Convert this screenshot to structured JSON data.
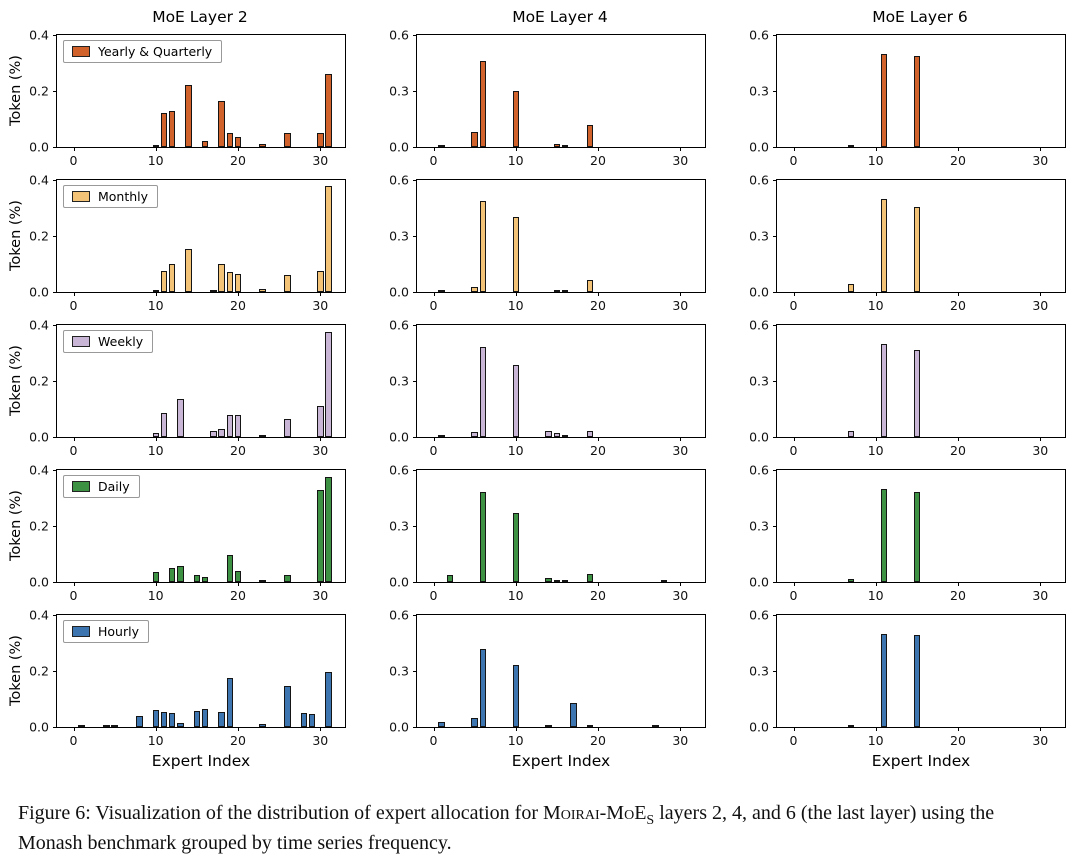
{
  "figure": {
    "caption_prefix": "Figure 6: Visualization of the distribution of expert allocation for ",
    "caption_brand": "Moirai-MoE",
    "caption_brand_sub": "S",
    "caption_suffix": " layers 2, 4, and 6 (the last layer) using the Monash benchmark grouped by time series frequency."
  },
  "chart_data": {
    "type": "bar",
    "layout": "5 rows (frequency groups) x 3 columns (MoE layers), small multiples",
    "columns": [
      "MoE Layer 2",
      "MoE Layer 4",
      "MoE Layer 6"
    ],
    "xlabel": "Expert Index",
    "ylabel": "Token (%)",
    "xticks": [
      0,
      10,
      20,
      30
    ],
    "xrange": [
      -2,
      33
    ],
    "col_ylim": [
      [
        0,
        0.4
      ],
      [
        0,
        0.6
      ],
      [
        0,
        0.6
      ]
    ],
    "col_yticks": [
      [
        0,
        0.2,
        0.4
      ],
      [
        0,
        0.3,
        0.6
      ],
      [
        0,
        0.3,
        0.6
      ]
    ],
    "bar_width": 0.8,
    "grid_lines": false,
    "legend_position": "upper-left of first column plots",
    "rows": [
      {
        "legend": "Yearly & Quarterly",
        "color": "#d2622b",
        "bars": [
          [
            [
              10,
              0.005
            ],
            [
              11,
              0.12
            ],
            [
              12,
              0.13
            ],
            [
              14,
              0.22
            ],
            [
              16,
              0.02
            ],
            [
              18,
              0.165
            ],
            [
              19,
              0.05
            ],
            [
              20,
              0.035
            ],
            [
              23,
              0.01
            ],
            [
              26,
              0.05
            ],
            [
              30,
              0.05
            ],
            [
              31,
              0.26
            ]
          ],
          [
            [
              1,
              0.01
            ],
            [
              5,
              0.08
            ],
            [
              6,
              0.46
            ],
            [
              10,
              0.3
            ],
            [
              15,
              0.015
            ],
            [
              16,
              0.01
            ],
            [
              19,
              0.12
            ]
          ],
          [
            [
              7,
              0.01
            ],
            [
              11,
              0.5
            ],
            [
              15,
              0.49
            ]
          ]
        ]
      },
      {
        "legend": "Monthly",
        "color": "#f3c377",
        "bars": [
          [
            [
              10,
              0.008
            ],
            [
              11,
              0.075
            ],
            [
              12,
              0.1
            ],
            [
              14,
              0.155
            ],
            [
              17,
              0.008
            ],
            [
              18,
              0.1
            ],
            [
              19,
              0.07
            ],
            [
              20,
              0.065
            ],
            [
              23,
              0.012
            ],
            [
              26,
              0.06
            ],
            [
              30,
              0.075
            ],
            [
              31,
              0.38
            ]
          ],
          [
            [
              1,
              0.005
            ],
            [
              5,
              0.025
            ],
            [
              6,
              0.49
            ],
            [
              10,
              0.4
            ],
            [
              15,
              0.01
            ],
            [
              16,
              0.005
            ],
            [
              19,
              0.065
            ]
          ],
          [
            [
              7,
              0.045
            ],
            [
              11,
              0.5
            ],
            [
              15,
              0.455
            ]
          ]
        ]
      },
      {
        "legend": "Weekly",
        "color": "#c9b5d6",
        "bars": [
          [
            [
              10,
              0.015
            ],
            [
              11,
              0.085
            ],
            [
              13,
              0.135
            ],
            [
              17,
              0.02
            ],
            [
              18,
              0.03
            ],
            [
              19,
              0.08
            ],
            [
              20,
              0.08
            ],
            [
              23,
              0.007
            ],
            [
              26,
              0.065
            ],
            [
              30,
              0.11
            ],
            [
              31,
              0.375
            ]
          ],
          [
            [
              1,
              0.005
            ],
            [
              5,
              0.025
            ],
            [
              6,
              0.48
            ],
            [
              10,
              0.385
            ],
            [
              14,
              0.035
            ],
            [
              15,
              0.02
            ],
            [
              16,
              0.012
            ],
            [
              19,
              0.035
            ]
          ],
          [
            [
              7,
              0.03
            ],
            [
              11,
              0.5
            ],
            [
              15,
              0.465
            ]
          ]
        ]
      },
      {
        "legend": "Daily",
        "color": "#3c9142",
        "bars": [
          [
            [
              10,
              0.035
            ],
            [
              12,
              0.05
            ],
            [
              13,
              0.058
            ],
            [
              15,
              0.025
            ],
            [
              16,
              0.018
            ],
            [
              19,
              0.095
            ],
            [
              20,
              0.038
            ],
            [
              23,
              0.006
            ],
            [
              26,
              0.025
            ],
            [
              30,
              0.33
            ],
            [
              31,
              0.375
            ]
          ],
          [
            [
              2,
              0.04
            ],
            [
              6,
              0.48
            ],
            [
              10,
              0.37
            ],
            [
              14,
              0.02
            ],
            [
              15,
              0.01
            ],
            [
              16,
              0.012
            ],
            [
              19,
              0.045
            ],
            [
              28,
              0.006
            ]
          ],
          [
            [
              7,
              0.015
            ],
            [
              11,
              0.5
            ],
            [
              15,
              0.485
            ]
          ]
        ]
      },
      {
        "legend": "Hourly",
        "color": "#3c75b0",
        "bars": [
          [
            [
              1,
              0.005
            ],
            [
              4,
              0.006
            ],
            [
              5,
              0.008
            ],
            [
              8,
              0.038
            ],
            [
              10,
              0.06
            ],
            [
              11,
              0.055
            ],
            [
              12,
              0.05
            ],
            [
              13,
              0.015
            ],
            [
              15,
              0.058
            ],
            [
              16,
              0.065
            ],
            [
              18,
              0.055
            ],
            [
              19,
              0.175
            ],
            [
              23,
              0.012
            ],
            [
              26,
              0.145
            ],
            [
              28,
              0.05
            ],
            [
              29,
              0.045
            ],
            [
              31,
              0.195
            ]
          ],
          [
            [
              1,
              0.025
            ],
            [
              5,
              0.05
            ],
            [
              6,
              0.42
            ],
            [
              10,
              0.335
            ],
            [
              14,
              0.012
            ],
            [
              17,
              0.13
            ],
            [
              19,
              0.012
            ],
            [
              27,
              0.005
            ]
          ],
          [
            [
              7,
              0.006
            ],
            [
              11,
              0.5
            ],
            [
              15,
              0.495
            ]
          ]
        ]
      }
    ]
  }
}
